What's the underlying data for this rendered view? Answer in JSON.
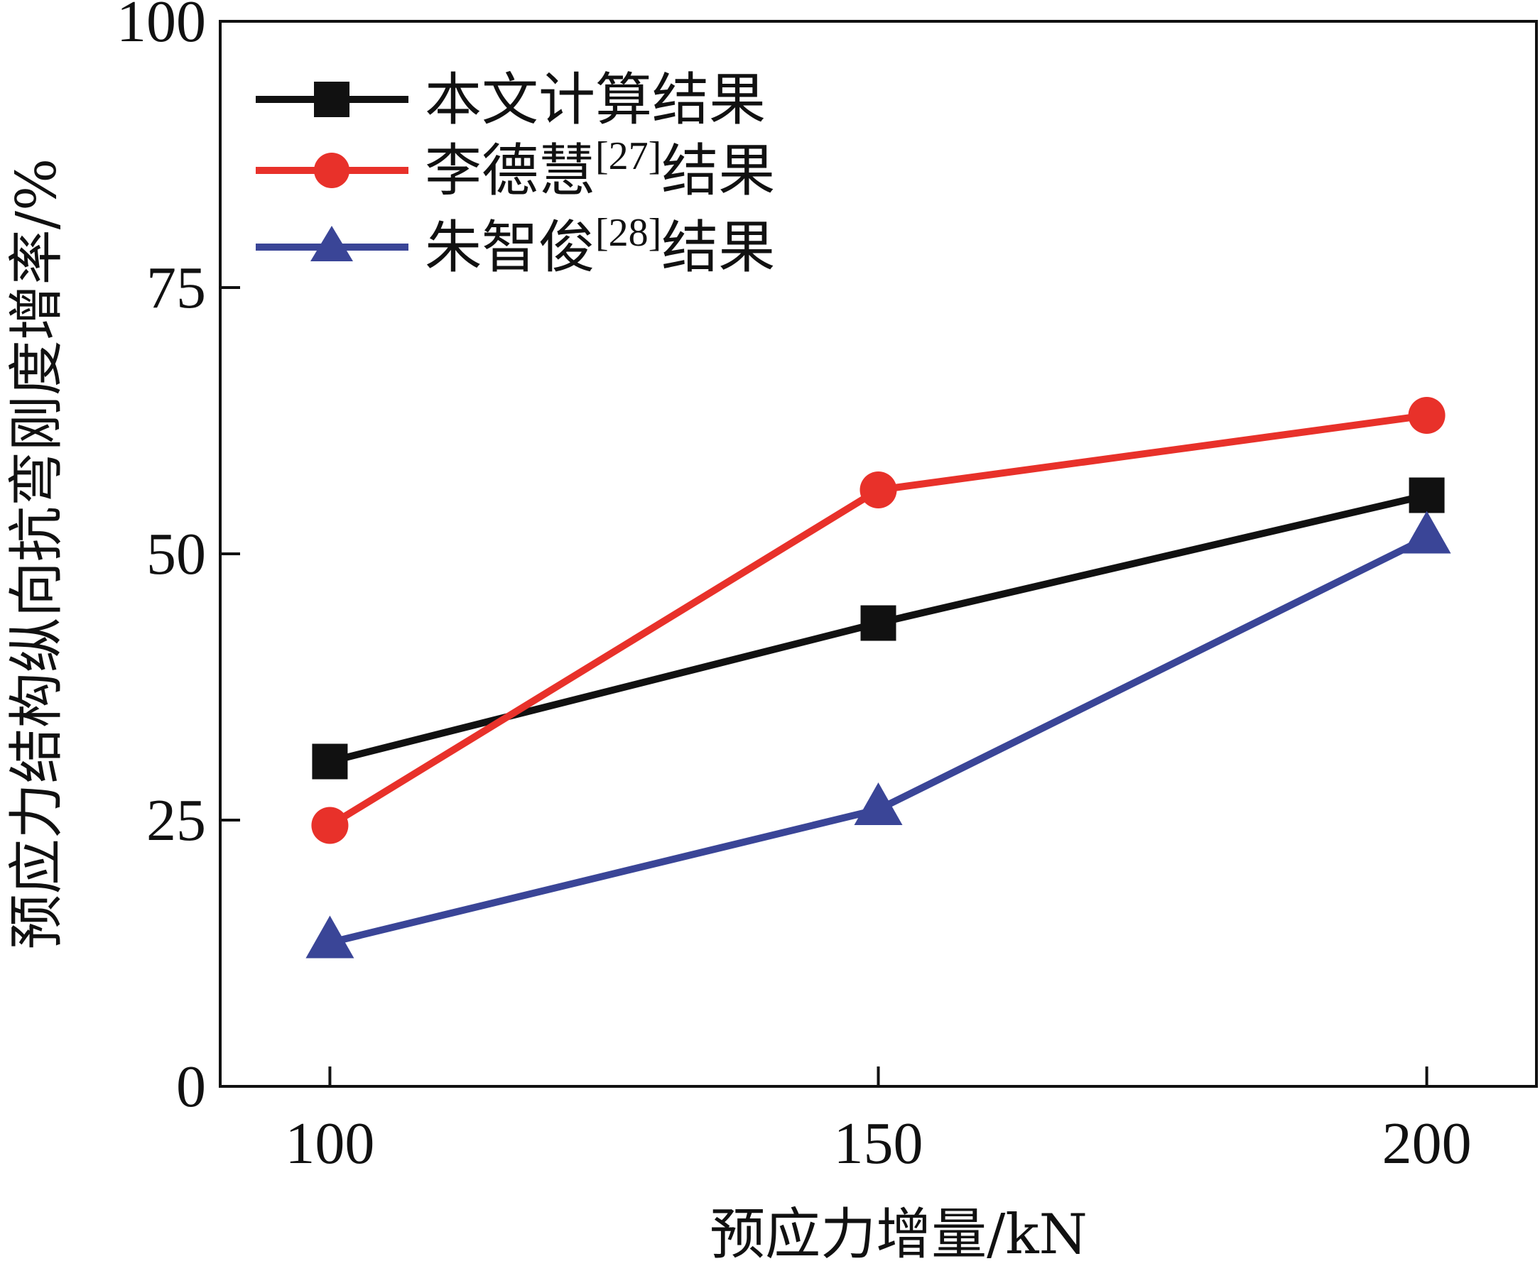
{
  "chart_data": {
    "type": "line",
    "title": "",
    "xlabel": "预应力增量/kN",
    "ylabel": "预应力结构纵向抗弯刚度增率/%",
    "x": [
      100,
      150,
      200
    ],
    "xticks": [
      "100",
      "150",
      "200"
    ],
    "yticks": [
      "0",
      "25",
      "50",
      "75",
      "100"
    ],
    "xlim": [
      90,
      210
    ],
    "ylim": [
      0,
      100
    ],
    "grid": false,
    "legend_position": "top-left",
    "series": [
      {
        "name": "本文计算结果",
        "label_main": "本文计算结果",
        "label_ref": "",
        "label_suffix": "",
        "color": "#111111",
        "marker": "square",
        "values": [
          30.5,
          43.5,
          55.5
        ]
      },
      {
        "name": "李德慧[27]结果",
        "label_main": "李德慧",
        "label_ref": "[27]",
        "label_suffix": "结果",
        "color": "#e8312a",
        "marker": "circle",
        "values": [
          24.5,
          56,
          63
        ]
      },
      {
        "name": "朱智俊[28]结果",
        "label_main": "朱智俊",
        "label_ref": "[28]",
        "label_suffix": "结果",
        "color": "#3a4597",
        "marker": "triangle",
        "values": [
          13.5,
          26,
          51.5
        ]
      }
    ]
  }
}
